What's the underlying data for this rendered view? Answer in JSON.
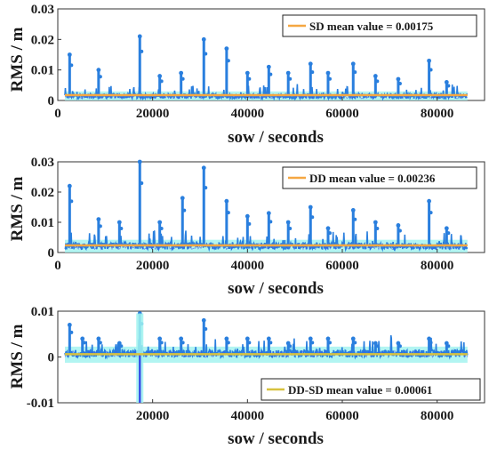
{
  "chart_data": [
    {
      "type": "line",
      "xlabel": "sow / seconds",
      "ylabel": "RMS / m",
      "xlim": [
        0,
        90000
      ],
      "ylim": [
        0,
        0.03
      ],
      "xticks": [
        0,
        20000,
        40000,
        60000,
        80000
      ],
      "xtick_labels": [
        "0",
        "20000",
        "40000",
        "60000",
        "80000"
      ],
      "yticks": [
        0,
        0.01,
        0.02,
        0.03
      ],
      "ytick_labels": [
        "0",
        "0.01",
        "0.02",
        "0.03"
      ],
      "x_range_data": [
        1500,
        86400
      ],
      "baseline": 0.0012,
      "noise": 0.0016,
      "spikes": [
        [
          2500,
          0.015
        ],
        [
          8600,
          0.01
        ],
        [
          17300,
          0.021
        ],
        [
          21500,
          0.008
        ],
        [
          26000,
          0.009
        ],
        [
          30800,
          0.02
        ],
        [
          35600,
          0.017
        ],
        [
          40000,
          0.009
        ],
        [
          44500,
          0.011
        ],
        [
          48600,
          0.009
        ],
        [
          53300,
          0.012
        ],
        [
          57000,
          0.009
        ],
        [
          62300,
          0.012
        ],
        [
          67000,
          0.008
        ],
        [
          71800,
          0.007
        ],
        [
          78300,
          0.013
        ],
        [
          82000,
          0.006
        ]
      ],
      "legend": "SD mean value = 0.00175",
      "legend_loc": "top-right",
      "mean_value": 0.00175,
      "colors": {
        "series": "#2a7fde",
        "band": "#9ff2ef",
        "accent": "#3a50e8",
        "mean": "#f5a742"
      }
    },
    {
      "type": "line",
      "xlabel": "sow / seconds",
      "ylabel": "RMS / m",
      "xlim": [
        0,
        90000
      ],
      "ylim": [
        0,
        0.03
      ],
      "xticks": [
        0,
        20000,
        40000,
        60000,
        80000
      ],
      "xtick_labels": [
        "0",
        "20000",
        "40000",
        "60000",
        "80000"
      ],
      "yticks": [
        0,
        0.01,
        0.02,
        0.03
      ],
      "ytick_labels": [
        "0",
        "0.01",
        "0.02",
        "0.03"
      ],
      "x_range_data": [
        1500,
        86400
      ],
      "baseline": 0.0018,
      "noise": 0.0022,
      "spikes": [
        [
          2500,
          0.022
        ],
        [
          8600,
          0.011
        ],
        [
          13000,
          0.01
        ],
        [
          17300,
          0.03
        ],
        [
          21500,
          0.01
        ],
        [
          26300,
          0.018
        ],
        [
          30800,
          0.028
        ],
        [
          35600,
          0.017
        ],
        [
          40000,
          0.012
        ],
        [
          44500,
          0.013
        ],
        [
          48600,
          0.01
        ],
        [
          53300,
          0.015
        ],
        [
          57000,
          0.008
        ],
        [
          62300,
          0.014
        ],
        [
          67000,
          0.01
        ],
        [
          71800,
          0.009
        ],
        [
          78300,
          0.017
        ],
        [
          82000,
          0.008
        ]
      ],
      "legend": "DD mean value = 0.00236",
      "legend_loc": "top-right",
      "mean_value": 0.00236,
      "colors": {
        "series": "#2a7fde",
        "band": "#9ff2ef",
        "accent": "#3a50e8",
        "mean": "#f5a742"
      }
    },
    {
      "type": "line",
      "xlabel": "sow / seconds",
      "ylabel": "RMS / m",
      "xlim": [
        0,
        90000
      ],
      "ylim": [
        -0.01,
        0.01
      ],
      "xticks": [
        20000,
        40000,
        60000,
        80000
      ],
      "xtick_labels": [
        "20000",
        "40000",
        "60000",
        "80000"
      ],
      "yticks": [
        -0.01,
        0,
        0.01
      ],
      "ytick_labels": [
        "-0.01",
        "0",
        "0.01"
      ],
      "x_range_data": [
        1500,
        86400
      ],
      "baseline": 0.0005,
      "noise": 0.0016,
      "low_dip": -0.01,
      "spikes": [
        [
          2500,
          0.007
        ],
        [
          5200,
          0.004
        ],
        [
          8600,
          0.004
        ],
        [
          13000,
          0.003
        ],
        [
          17300,
          0.0095
        ],
        [
          21500,
          0.004
        ],
        [
          26000,
          0.004
        ],
        [
          30800,
          0.008
        ],
        [
          35600,
          0.004
        ],
        [
          40000,
          0.004
        ],
        [
          44500,
          0.004
        ],
        [
          48600,
          0.003
        ],
        [
          53300,
          0.004
        ],
        [
          57000,
          0.004
        ],
        [
          62300,
          0.004
        ],
        [
          67000,
          0.003
        ],
        [
          71800,
          0.003
        ],
        [
          78300,
          0.004
        ],
        [
          82000,
          0.003
        ]
      ],
      "legend": "DD-SD mean value = 0.00061",
      "legend_loc": "bottom-right",
      "mean_value": 0.00061,
      "colors": {
        "series": "#2a7fde",
        "band": "#9ff2ef",
        "accent": "#3a50e8",
        "mean": "#d8c23f"
      }
    }
  ]
}
